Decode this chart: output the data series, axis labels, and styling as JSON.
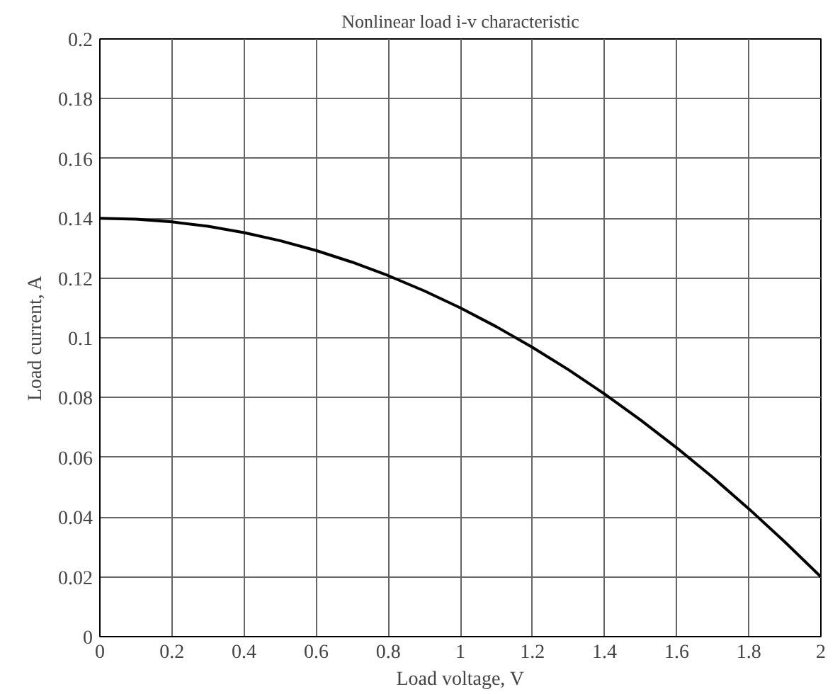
{
  "chart_data": {
    "type": "line",
    "title": "Nonlinear load i-v characteristic",
    "xlabel": "Load voltage, V",
    "ylabel": "Load current, A",
    "x": [
      0,
      0.1,
      0.2,
      0.3,
      0.4,
      0.5,
      0.6,
      0.7,
      0.8,
      0.9,
      1.0,
      1.1,
      1.2,
      1.3,
      1.4,
      1.5,
      1.6,
      1.7,
      1.8,
      1.9,
      2.0
    ],
    "series": [
      {
        "color": "#000000",
        "values": [
          0.14,
          0.1397,
          0.1388,
          0.1373,
          0.1352,
          0.1325,
          0.1292,
          0.1253,
          0.1208,
          0.1157,
          0.11,
          0.1037,
          0.0968,
          0.0893,
          0.0812,
          0.0725,
          0.0632,
          0.0533,
          0.0428,
          0.0317,
          0.02
        ]
      }
    ],
    "xlim": [
      0,
      2
    ],
    "ylim": [
      0,
      0.2
    ],
    "xticks": [
      0,
      0.2,
      0.4,
      0.6,
      0.8,
      1,
      1.2,
      1.4,
      1.6,
      1.8,
      2
    ],
    "yticks": [
      0,
      0.02,
      0.04,
      0.06,
      0.08,
      0.1,
      0.12,
      0.14,
      0.16,
      0.18,
      0.2
    ],
    "grid": true,
    "line_style": "solid"
  }
}
